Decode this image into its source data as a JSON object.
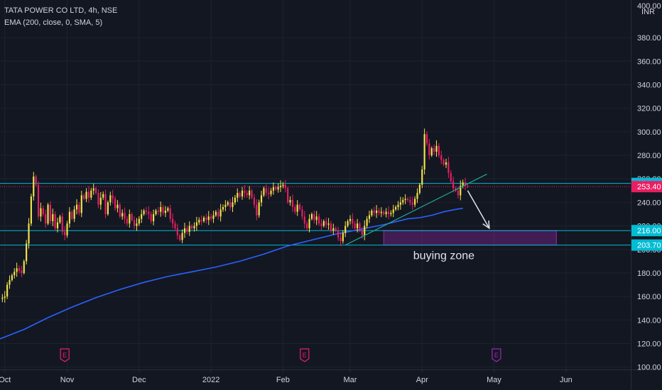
{
  "header": {
    "symbol_line": "TATA POWER CO LTD, 4h, NSE",
    "indicator_line": "EMA (200, close, 0, SMA, 5)"
  },
  "colors": {
    "background": "#131722",
    "up": "#f2e34c",
    "down": "#e91e63",
    "ema": "#2962ff",
    "hline": "#00bcd4",
    "zone": "#9c27b0",
    "arrow": "#e0e3eb"
  },
  "chart_data": {
    "type": "candlestick",
    "currency": "INR",
    "ylim": [
      98,
      412
    ],
    "y_ticks": [
      100,
      120,
      140,
      160,
      180,
      200,
      220,
      240,
      260,
      280,
      300,
      320,
      340,
      360,
      380
    ],
    "y_tick_labels": [
      "100.00",
      "120.00",
      "140.00",
      "160.00",
      "180.00",
      "200.00",
      "220.00",
      "240.00",
      "260.00",
      "280.00",
      "300.00",
      "320.00",
      "340.00",
      "360.00",
      "380.00"
    ],
    "top_cut_label": "400.00",
    "x_labels": [
      "Oct",
      "Nov",
      "Dec",
      "2022",
      "Feb",
      "Mar",
      "Apr",
      "May",
      "Jun"
    ],
    "x_label_pos": [
      2,
      28,
      58,
      88,
      118,
      146,
      176,
      206,
      236
    ],
    "x_range": [
      0,
      263
    ],
    "price_tags": [
      {
        "value": 256.1,
        "label": "256.10",
        "color": "#00bcd4",
        "dashed": false
      },
      {
        "value": 253.4,
        "label": "253.40",
        "color": "#e91e63",
        "dashed": true
      },
      {
        "value": 216.0,
        "label": "216.00",
        "color": "#00bcd4",
        "dashed": false
      },
      {
        "value": 203.7,
        "label": "203.70",
        "color": "#00bcd4",
        "dashed": false
      }
    ],
    "price_path": [
      [
        0,
        158
      ],
      [
        2,
        160
      ],
      [
        3,
        170
      ],
      [
        5,
        178
      ],
      [
        7,
        184
      ],
      [
        9,
        180
      ],
      [
        10,
        190
      ],
      [
        11,
        205
      ],
      [
        12,
        222
      ],
      [
        13,
        245
      ],
      [
        14,
        262
      ],
      [
        15,
        255
      ],
      [
        16,
        228
      ],
      [
        17,
        235
      ],
      [
        18,
        230
      ],
      [
        19,
        222
      ],
      [
        20,
        238
      ],
      [
        21,
        224
      ],
      [
        22,
        230
      ],
      [
        23,
        218
      ],
      [
        25,
        228
      ],
      [
        26,
        215
      ],
      [
        27,
        212
      ],
      [
        28,
        222
      ],
      [
        29,
        232
      ],
      [
        30,
        226
      ],
      [
        31,
        234
      ],
      [
        32,
        238
      ],
      [
        33,
        231
      ],
      [
        34,
        246
      ],
      [
        35,
        243
      ],
      [
        36,
        249
      ],
      [
        37,
        244
      ],
      [
        38,
        250
      ],
      [
        39,
        252
      ],
      [
        40,
        248
      ],
      [
        41,
        238
      ],
      [
        42,
        244
      ],
      [
        43,
        247
      ],
      [
        44,
        230
      ],
      [
        45,
        240
      ],
      [
        46,
        246
      ],
      [
        47,
        243
      ],
      [
        48,
        235
      ],
      [
        49,
        238
      ],
      [
        50,
        228
      ],
      [
        51,
        231
      ],
      [
        52,
        226
      ],
      [
        53,
        222
      ],
      [
        54,
        230
      ],
      [
        55,
        225
      ],
      [
        56,
        220
      ],
      [
        57,
        222
      ],
      [
        58,
        226
      ],
      [
        59,
        230
      ],
      [
        60,
        233
      ],
      [
        61,
        232
      ],
      [
        62,
        230
      ],
      [
        63,
        224
      ],
      [
        64,
        230
      ],
      [
        65,
        233
      ],
      [
        66,
        232
      ],
      [
        67,
        236
      ],
      [
        68,
        231
      ],
      [
        69,
        233
      ],
      [
        70,
        235
      ],
      [
        71,
        226
      ],
      [
        72,
        222
      ],
      [
        73,
        218
      ],
      [
        74,
        212
      ],
      [
        75,
        208
      ],
      [
        76,
        214
      ],
      [
        77,
        218
      ],
      [
        78,
        215
      ],
      [
        79,
        220
      ],
      [
        80,
        218
      ],
      [
        81,
        220
      ],
      [
        82,
        223
      ],
      [
        83,
        225
      ],
      [
        84,
        224
      ],
      [
        85,
        227
      ],
      [
        86,
        225
      ],
      [
        87,
        228
      ],
      [
        88,
        226
      ],
      [
        89,
        229
      ],
      [
        90,
        232
      ],
      [
        91,
        228
      ],
      [
        92,
        234
      ],
      [
        93,
        236
      ],
      [
        94,
        238
      ],
      [
        95,
        240
      ],
      [
        96,
        236
      ],
      [
        97,
        240
      ],
      [
        98,
        244
      ],
      [
        99,
        248
      ],
      [
        100,
        245
      ],
      [
        101,
        250
      ],
      [
        102,
        248
      ],
      [
        103,
        246
      ],
      [
        104,
        250
      ],
      [
        105,
        244
      ],
      [
        106,
        238
      ],
      [
        107,
        229
      ],
      [
        108,
        240
      ],
      [
        109,
        246
      ],
      [
        110,
        252
      ],
      [
        111,
        248
      ],
      [
        112,
        247
      ],
      [
        113,
        250
      ],
      [
        114,
        253
      ],
      [
        115,
        251
      ],
      [
        116,
        253
      ],
      [
        117,
        254
      ],
      [
        118,
        255
      ],
      [
        119,
        252
      ],
      [
        120,
        240
      ],
      [
        121,
        242
      ],
      [
        122,
        236
      ],
      [
        123,
        232
      ],
      [
        124,
        238
      ],
      [
        125,
        234
      ],
      [
        126,
        228
      ],
      [
        127,
        222
      ],
      [
        128,
        218
      ],
      [
        129,
        226
      ],
      [
        130,
        230
      ],
      [
        131,
        225
      ],
      [
        132,
        228
      ],
      [
        133,
        222
      ],
      [
        134,
        220
      ],
      [
        135,
        224
      ],
      [
        136,
        221
      ],
      [
        137,
        222
      ],
      [
        138,
        216
      ],
      [
        139,
        218
      ],
      [
        140,
        216
      ],
      [
        141,
        210
      ],
      [
        142,
        207
      ],
      [
        143,
        214
      ],
      [
        144,
        220
      ],
      [
        145,
        224
      ],
      [
        146,
        226
      ],
      [
        147,
        222
      ],
      [
        148,
        218
      ],
      [
        149,
        222
      ],
      [
        150,
        216
      ],
      [
        151,
        212
      ],
      [
        152,
        220
      ],
      [
        153,
        226
      ],
      [
        154,
        229
      ],
      [
        155,
        233
      ],
      [
        156,
        231
      ],
      [
        157,
        233
      ],
      [
        158,
        231
      ],
      [
        159,
        232
      ],
      [
        160,
        230
      ],
      [
        161,
        232
      ],
      [
        162,
        230
      ],
      [
        163,
        231
      ],
      [
        164,
        234
      ],
      [
        165,
        236
      ],
      [
        166,
        238
      ],
      [
        167,
        240
      ],
      [
        168,
        242
      ],
      [
        169,
        243
      ],
      [
        170,
        242
      ],
      [
        171,
        240
      ],
      [
        172,
        238
      ],
      [
        173,
        243
      ],
      [
        174,
        248
      ],
      [
        175,
        255
      ],
      [
        176,
        268
      ],
      [
        177,
        298
      ],
      [
        178,
        290
      ],
      [
        179,
        280
      ],
      [
        180,
        286
      ],
      [
        181,
        283
      ],
      [
        182,
        288
      ],
      [
        183,
        280
      ],
      [
        184,
        276
      ],
      [
        185,
        272
      ],
      [
        186,
        274
      ],
      [
        187,
        265
      ],
      [
        188,
        258
      ],
      [
        189,
        252
      ],
      [
        190,
        250
      ],
      [
        191,
        246
      ],
      [
        192,
        254
      ],
      [
        193,
        257
      ],
      [
        194,
        254
      ],
      [
        195,
        253.4
      ]
    ],
    "ema_path": [
      [
        0,
        124
      ],
      [
        10,
        132
      ],
      [
        20,
        142
      ],
      [
        30,
        151
      ],
      [
        40,
        159
      ],
      [
        50,
        166
      ],
      [
        60,
        172
      ],
      [
        70,
        177
      ],
      [
        80,
        181
      ],
      [
        90,
        185
      ],
      [
        100,
        190
      ],
      [
        110,
        196
      ],
      [
        120,
        203
      ],
      [
        130,
        208
      ],
      [
        140,
        213
      ],
      [
        150,
        217
      ],
      [
        160,
        221
      ],
      [
        170,
        226
      ],
      [
        175,
        227
      ],
      [
        180,
        229
      ],
      [
        185,
        232
      ],
      [
        190,
        234
      ],
      [
        193,
        235
      ]
    ],
    "trendline": {
      "from": [
        144,
        203.7
      ],
      "to": [
        203,
        264
      ]
    },
    "horizontal_lines": [
      256.1,
      216.0,
      203.7
    ],
    "zone": {
      "x0": 160,
      "x1": 232,
      "y_low": 203.7,
      "y_high": 216.0,
      "label": "buying zone"
    },
    "arrow": {
      "from": [
        195,
        250
      ],
      "to": [
        204,
        218
      ]
    },
    "earnings_markers": [
      {
        "x": 27,
        "label": "E",
        "color": "#e91e63"
      },
      {
        "x": 127,
        "label": "E",
        "color": "#e91e63"
      },
      {
        "x": 207,
        "label": "E",
        "color": "#9c27b0"
      }
    ]
  }
}
